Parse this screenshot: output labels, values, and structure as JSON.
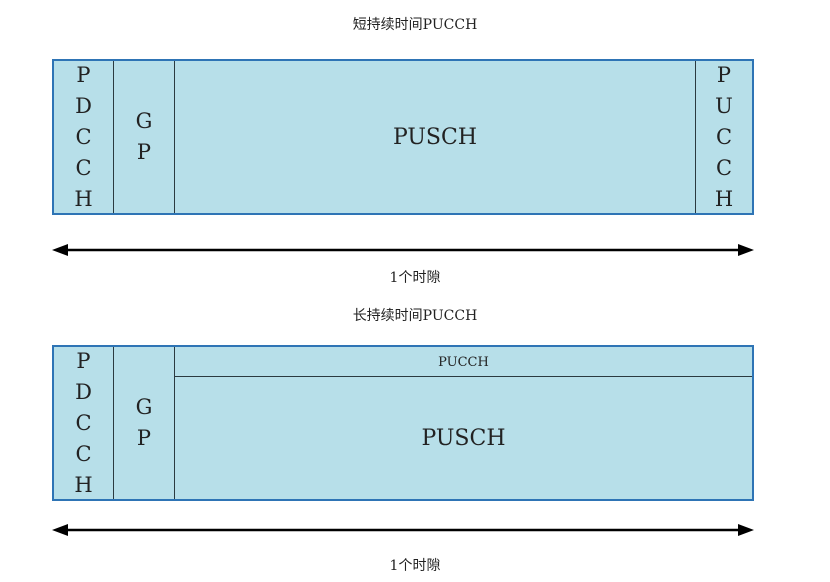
{
  "diagram1": {
    "title": "短持续时间PUCCH",
    "pdcch_letters": [
      "P",
      "D",
      "C",
      "C",
      "H"
    ],
    "gp_letters": [
      "G",
      "P"
    ],
    "pusch_label": "PUSCH",
    "pucch_letters": [
      "P",
      "U",
      "C",
      "C",
      "H"
    ],
    "span_label": "1个时隙"
  },
  "diagram2": {
    "title": "长持续时间PUCCH",
    "pdcch_letters": [
      "P",
      "D",
      "C",
      "C",
      "H"
    ],
    "gp_letters": [
      "G",
      "P"
    ],
    "pucch_label": "PUCCH",
    "pusch_label": "PUSCH",
    "span_label": "1个时隙"
  },
  "colors": {
    "fill": "#b7dfe9",
    "border": "#2e74b5",
    "divider": "#2b3a40",
    "arrow": "#000000"
  }
}
